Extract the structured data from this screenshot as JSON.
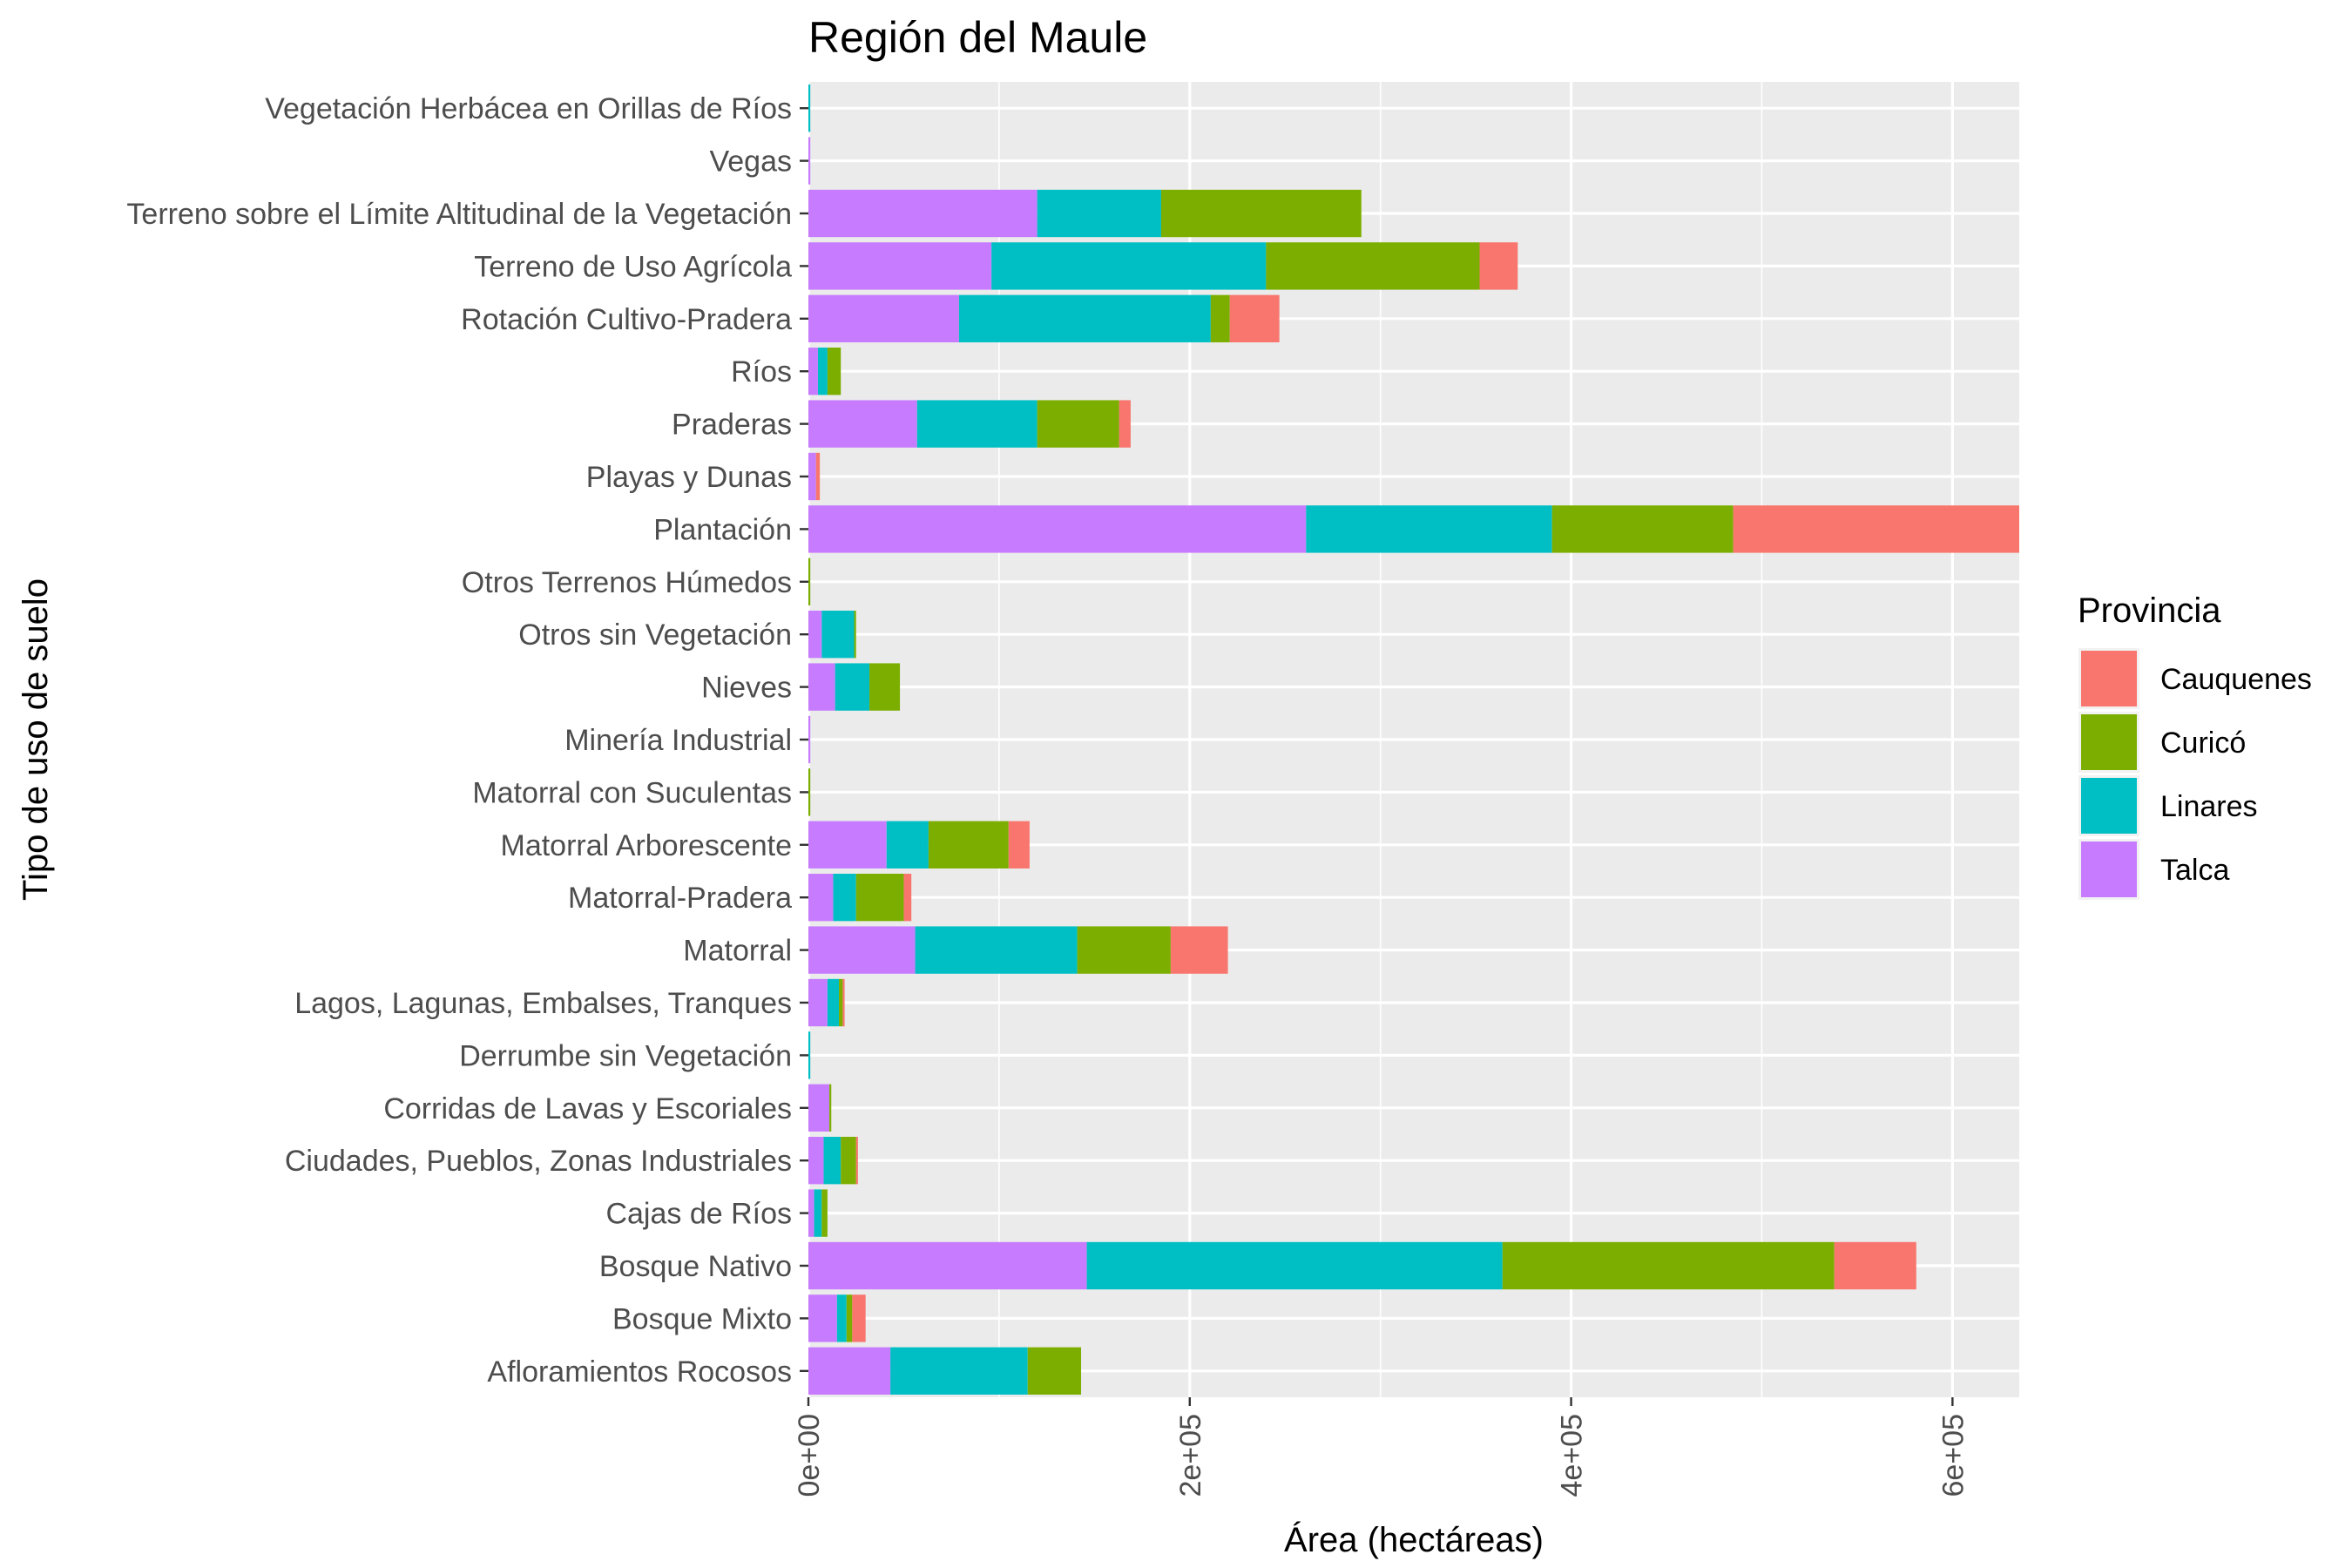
{
  "chart_data": {
    "type": "bar",
    "orientation": "horizontal",
    "stacked": true,
    "title": "Región del Maule",
    "xlabel": "Área (hectáreas)",
    "ylabel": "Tipo de uso de suelo",
    "xlim": [
      0,
      635000
    ],
    "x_ticks": [
      0,
      200000,
      400000,
      600000
    ],
    "x_tick_labels": [
      "0e+00",
      "2e+05",
      "4e+05",
      "6e+05"
    ],
    "grid": true,
    "legend": {
      "title": "Provincia",
      "position": "right"
    },
    "stack_order": [
      "Talca",
      "Linares",
      "Curicó",
      "Cauquenes"
    ],
    "categories": [
      "Afloramientos Rocosos",
      "Bosque Mixto",
      "Bosque Nativo",
      "Cajas de Ríos",
      "Ciudades, Pueblos, Zonas Industriales",
      "Corridas de Lavas y Escoriales",
      "Derrumbe sin Vegetación",
      "Lagos, Lagunas, Embalses, Tranques",
      "Matorral",
      "Matorral-Pradera",
      "Matorral Arborescente",
      "Matorral con Suculentas",
      "Minería Industrial",
      "Nieves",
      "Otros sin Vegetación",
      "Otros Terrenos Húmedos",
      "Plantación",
      "Playas y Dunas",
      "Praderas",
      "Ríos",
      "Rotación Cultivo-Pradera",
      "Terreno de Uso Agrícola",
      "Terreno sobre el Límite Altitudinal de la Vegetación",
      "Vegas",
      "Vegetación Herbácea en Orillas de Ríos"
    ],
    "series": [
      {
        "name": "Cauquenes",
        "color": "#F8766D",
        "values": [
          0,
          7000,
          43000,
          0,
          1000,
          0,
          0,
          1000,
          30000,
          4000,
          11000,
          0,
          0,
          0,
          0,
          0,
          150000,
          2000,
          6000,
          0,
          26000,
          20000,
          0,
          0,
          0
        ]
      },
      {
        "name": "Curicó",
        "color": "#7CAE00",
        "values": [
          28000,
          3000,
          174000,
          3000,
          8000,
          1000,
          0,
          2000,
          49000,
          25000,
          42000,
          1000,
          0,
          16000,
          1000,
          1000,
          95000,
          0,
          43000,
          7000,
          10000,
          112000,
          105000,
          0,
          0
        ]
      },
      {
        "name": "Linares",
        "color": "#00BFC4",
        "values": [
          72000,
          5000,
          218000,
          4000,
          9000,
          0,
          1000,
          6000,
          85000,
          12000,
          22000,
          0,
          0,
          18000,
          17000,
          0,
          129000,
          0,
          63000,
          5000,
          132000,
          144000,
          65000,
          0,
          1000
        ]
      },
      {
        "name": "Talca",
        "color": "#C77CFF",
        "values": [
          43000,
          15000,
          146000,
          3000,
          8000,
          11000,
          0,
          10000,
          56000,
          13000,
          41000,
          0,
          1000,
          14000,
          7000,
          0,
          261000,
          4000,
          57000,
          5000,
          79000,
          96000,
          120000,
          1000,
          0
        ]
      }
    ]
  }
}
